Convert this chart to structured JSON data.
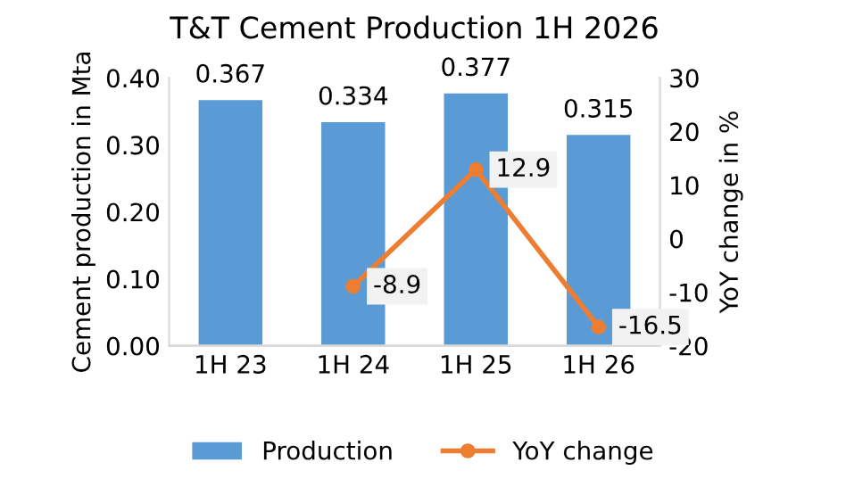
{
  "chart_data": {
    "type": "bar",
    "title": "T&T Cement Production 1H 2026",
    "categories": [
      "1H 23",
      "1H 24",
      "1H 25",
      "1H 26"
    ],
    "series": [
      {
        "name": "Production",
        "color": "#5b9bd5",
        "values": [
          0.367,
          0.334,
          0.377,
          0.315
        ]
      },
      {
        "name": "YoY change",
        "type": "line",
        "axis": "y2",
        "color": "#ed7d31",
        "values": [
          null,
          -8.9,
          12.9,
          -16.5
        ]
      }
    ],
    "ylabel": "Cement production in Mta",
    "y2label": "YoY change in %",
    "ylim": [
      0,
      0.4
    ],
    "yticks": [
      {
        "value": 0,
        "label": "0.00"
      },
      {
        "value": 0.1,
        "label": "0.10"
      },
      {
        "value": 0.2,
        "label": "0.20"
      },
      {
        "value": 0.3,
        "label": "0.30"
      },
      {
        "value": 0.4,
        "label": "0.40"
      }
    ],
    "y2lim": [
      -20,
      30
    ],
    "y2ticks": [
      -20,
      -10,
      0,
      10,
      20,
      30
    ],
    "data_labels": true,
    "marker": "circle",
    "legend": "bottom",
    "grid": false
  }
}
